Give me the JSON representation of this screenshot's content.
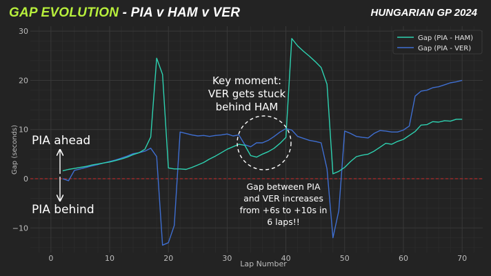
{
  "header": {
    "title_highlight": "GAP EVOLUTION",
    "title_rest": " - PIA v HAM v VER",
    "event": "HUNGARIAN GP 2024"
  },
  "colors": {
    "background": "#232323",
    "title_highlight": "#b8f03c",
    "series_ham": "#2ed3b2",
    "series_ver": "#3f6fd2",
    "zero_line": "#d42b2b"
  },
  "chart_data": {
    "type": "line",
    "xlabel": "Lap Number",
    "ylabel": "Gap (seconds)",
    "xlim": [
      -3.5,
      73.5
    ],
    "ylim": [
      -15,
      31
    ],
    "xticks": [
      0,
      10,
      20,
      30,
      40,
      50,
      60,
      70
    ],
    "yticks": [
      -10,
      0,
      10,
      20,
      30
    ],
    "grid": true,
    "legend_position": "top-right",
    "zero_line": 0,
    "series": [
      {
        "name": "Gap (PIA - HAM)",
        "color": "#2ed3b2",
        "points": [
          [
            2,
            1.6
          ],
          [
            3,
            1.9
          ],
          [
            4,
            2.1
          ],
          [
            5,
            2.3
          ],
          [
            6,
            2.5
          ],
          [
            7,
            2.8
          ],
          [
            8,
            3.0
          ],
          [
            9,
            3.2
          ],
          [
            10,
            3.4
          ],
          [
            11,
            3.7
          ],
          [
            12,
            4.0
          ],
          [
            13,
            4.4
          ],
          [
            14,
            4.9
          ],
          [
            15,
            5.3
          ],
          [
            16,
            6.0
          ],
          [
            17,
            8.5
          ],
          [
            18,
            24.5
          ],
          [
            19,
            21.2
          ],
          [
            20,
            2.2
          ],
          [
            21,
            2.0
          ],
          [
            22,
            2.0
          ],
          [
            23,
            1.9
          ],
          [
            24,
            2.3
          ],
          [
            25,
            2.8
          ],
          [
            26,
            3.3
          ],
          [
            27,
            4.0
          ],
          [
            28,
            4.6
          ],
          [
            29,
            5.3
          ],
          [
            30,
            6.0
          ],
          [
            31,
            6.5
          ],
          [
            32,
            7.0
          ],
          [
            33,
            6.8
          ],
          [
            34,
            4.7
          ],
          [
            35,
            4.4
          ],
          [
            36,
            5.0
          ],
          [
            37,
            5.5
          ],
          [
            38,
            6.2
          ],
          [
            39,
            7.2
          ],
          [
            40,
            8.4
          ],
          [
            41,
            28.5
          ],
          [
            42,
            27.0
          ],
          [
            43,
            25.9
          ],
          [
            44,
            24.9
          ],
          [
            45,
            23.8
          ],
          [
            46,
            22.6
          ],
          [
            47,
            19.2
          ],
          [
            48,
            1.0
          ],
          [
            49,
            1.5
          ],
          [
            50,
            2.3
          ],
          [
            51,
            3.5
          ],
          [
            52,
            4.5
          ],
          [
            53,
            4.8
          ],
          [
            54,
            5.0
          ],
          [
            55,
            5.6
          ],
          [
            56,
            6.4
          ],
          [
            57,
            7.2
          ],
          [
            58,
            7.0
          ],
          [
            59,
            7.6
          ],
          [
            60,
            8.0
          ],
          [
            61,
            8.8
          ],
          [
            62,
            9.6
          ],
          [
            63,
            10.9
          ],
          [
            64,
            11.0
          ],
          [
            65,
            11.6
          ],
          [
            66,
            11.5
          ],
          [
            67,
            11.8
          ],
          [
            68,
            11.7
          ],
          [
            69,
            12.1
          ],
          [
            70,
            12.1
          ]
        ]
      },
      {
        "name": "Gap (PIA - VER)",
        "color": "#3f6fd2",
        "points": [
          [
            2,
            0.0
          ],
          [
            3,
            -0.4
          ],
          [
            4,
            1.7
          ],
          [
            5,
            2.0
          ],
          [
            6,
            2.3
          ],
          [
            7,
            2.6
          ],
          [
            8,
            2.9
          ],
          [
            9,
            3.2
          ],
          [
            10,
            3.5
          ],
          [
            11,
            3.8
          ],
          [
            12,
            4.2
          ],
          [
            13,
            4.6
          ],
          [
            14,
            5.1
          ],
          [
            15,
            5.3
          ],
          [
            16,
            5.6
          ],
          [
            17,
            6.2
          ],
          [
            18,
            4.5
          ],
          [
            19,
            -13.5
          ],
          [
            20,
            -13.0
          ],
          [
            21,
            -9.5
          ],
          [
            22,
            9.5
          ],
          [
            23,
            9.2
          ],
          [
            24,
            8.9
          ],
          [
            25,
            8.7
          ],
          [
            26,
            8.8
          ],
          [
            27,
            8.6
          ],
          [
            28,
            8.8
          ],
          [
            29,
            8.9
          ],
          [
            30,
            9.1
          ],
          [
            31,
            8.7
          ],
          [
            32,
            8.9
          ],
          [
            33,
            6.9
          ],
          [
            34,
            6.5
          ],
          [
            35,
            7.3
          ],
          [
            36,
            7.3
          ],
          [
            37,
            7.8
          ],
          [
            38,
            8.6
          ],
          [
            39,
            9.5
          ],
          [
            40,
            10.2
          ],
          [
            41,
            9.9
          ],
          [
            42,
            8.6
          ],
          [
            43,
            8.2
          ],
          [
            44,
            7.8
          ],
          [
            45,
            7.6
          ],
          [
            46,
            7.3
          ],
          [
            47,
            2.0
          ],
          [
            48,
            -12.0
          ],
          [
            49,
            -6.5
          ],
          [
            50,
            9.7
          ],
          [
            51,
            9.2
          ],
          [
            52,
            8.6
          ],
          [
            53,
            8.4
          ],
          [
            54,
            8.3
          ],
          [
            55,
            9.2
          ],
          [
            56,
            9.8
          ],
          [
            57,
            9.7
          ],
          [
            58,
            9.5
          ],
          [
            59,
            9.5
          ],
          [
            60,
            9.9
          ],
          [
            61,
            10.7
          ],
          [
            62,
            16.8
          ],
          [
            63,
            17.8
          ],
          [
            64,
            18.0
          ],
          [
            65,
            18.5
          ],
          [
            66,
            18.7
          ],
          [
            67,
            19.1
          ],
          [
            68,
            19.5
          ],
          [
            69,
            19.7
          ],
          [
            70,
            20.0
          ]
        ]
      }
    ],
    "annotations": {
      "key_moment": [
        "Key moment:",
        "VER gets stuck",
        "behind HAM"
      ],
      "gap_note": [
        "Gap between PIA",
        "and VER increases",
        "from +6s to +10s in",
        "6 laps!!"
      ],
      "ahead_label": "PIA ahead",
      "behind_label": "PIA behind"
    }
  }
}
